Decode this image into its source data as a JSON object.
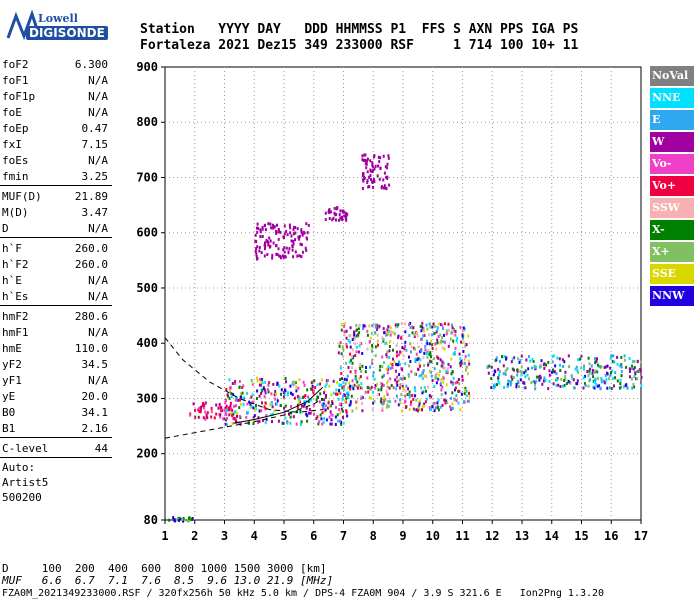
{
  "logo": {
    "line1": "Lowell",
    "line2": "DIGISONDE"
  },
  "header": {
    "line1": "Station   YYYY DAY   DDD HHMMSS P1  FFS S AXN PPS IGA PS",
    "line2": "Fortaleza 2021 Dez15 349 233000 RSF     1 714 100 10+ 11"
  },
  "params": {
    "group1": [
      {
        "k": "foF2",
        "v": "6.300"
      },
      {
        "k": "foF1",
        "v": "N/A"
      },
      {
        "k": "foF1p",
        "v": "N/A"
      },
      {
        "k": "foE",
        "v": "N/A"
      },
      {
        "k": "foEp",
        "v": "0.47"
      },
      {
        "k": "fxI",
        "v": "7.15"
      },
      {
        "k": "foEs",
        "v": "N/A"
      },
      {
        "k": "fmin",
        "v": "3.25"
      }
    ],
    "group2": [
      {
        "k": "MUF(D)",
        "v": "21.89"
      },
      {
        "k": "M(D)",
        "v": "3.47"
      },
      {
        "k": "D",
        "v": "N/A"
      }
    ],
    "group3": [
      {
        "k": "h`F",
        "v": "260.0"
      },
      {
        "k": "h`F2",
        "v": "260.0"
      },
      {
        "k": "h`E",
        "v": "N/A"
      },
      {
        "k": "h`Es",
        "v": "N/A"
      }
    ],
    "group4": [
      {
        "k": "hmF2",
        "v": "280.6"
      },
      {
        "k": "hmF1",
        "v": "N/A"
      },
      {
        "k": "hmE",
        "v": "110.0"
      },
      {
        "k": "yF2",
        "v": "34.5"
      },
      {
        "k": "yF1",
        "v": "N/A"
      },
      {
        "k": "yE",
        "v": "20.0"
      },
      {
        "k": "B0",
        "v": "34.1"
      },
      {
        "k": "B1",
        "v": "2.16"
      }
    ],
    "group5": [
      {
        "k": "C-level",
        "v": "44"
      }
    ],
    "misc": [
      "Auto:",
      "Artist5",
      "500200"
    ]
  },
  "legend": [
    {
      "label": "NoVal",
      "color": "#808080"
    },
    {
      "label": "NNE",
      "color": "#00e0ff"
    },
    {
      "label": "E",
      "color": "#30a8f0"
    },
    {
      "label": "W",
      "color": "#a000a0"
    },
    {
      "label": "Vo-",
      "color": "#f040c8"
    },
    {
      "label": "Vo+",
      "color": "#f00040"
    },
    {
      "label": "SSW",
      "color": "#f8b0b0"
    },
    {
      "label": "X-",
      "color": "#008000"
    },
    {
      "label": "X+",
      "color": "#80c060"
    },
    {
      "label": "SSE",
      "color": "#d8d800"
    },
    {
      "label": "NNW",
      "color": "#2000e0"
    }
  ],
  "footer": {
    "line1": "D     100  200  400  600  800 1000 1500 3000 [km]",
    "line2": "MUF   6.6  6.7  7.1  7.6  8.5  9.6 13.0 21.9 [MHz]",
    "line3": "FZA0M_2021349233000.RSF / 320fx256h 50 kHz 5.0 km / DPS-4 FZA0M 904 / 3.9 S 321.6 E   Ion2Png 1.3.20"
  },
  "chart_data": {
    "type": "scatter",
    "xlabel": "",
    "ylabel": "",
    "xlim": [
      1,
      17
    ],
    "ylim": [
      80,
      900
    ],
    "xticks": [
      1,
      2,
      3,
      4,
      5,
      6,
      7,
      8,
      9,
      10,
      11,
      12,
      13,
      14,
      15,
      16,
      17
    ],
    "yticks": [
      80,
      200,
      300,
      400,
      500,
      600,
      700,
      800,
      900
    ],
    "grid": true,
    "legend_position": "right",
    "clusters": [
      {
        "name": "E-trace",
        "f": [
          1.1,
          1.9
        ],
        "h": [
          80,
          88
        ],
        "colors": [
          "#008000",
          "#80c060",
          "#2000e0"
        ]
      },
      {
        "name": "F-trace-low",
        "f": [
          1.8,
          3.3
        ],
        "h": [
          265,
          295
        ],
        "colors": [
          "#a000a0",
          "#f040c8",
          "#f00040"
        ]
      },
      {
        "name": "F-trace-main",
        "f": [
          3.0,
          7.2
        ],
        "h": [
          255,
          340
        ],
        "colors": [
          "#a000a0",
          "#f040c8",
          "#f00040",
          "#00e0ff",
          "#2000e0",
          "#d8d800",
          "#008000"
        ]
      },
      {
        "name": "F-scatter",
        "f": [
          6.8,
          11.2
        ],
        "h": [
          280,
          440
        ],
        "colors": [
          "#a000a0",
          "#f040c8",
          "#f00040",
          "#f8b0b0",
          "#00e0ff",
          "#30a8f0",
          "#2000e0",
          "#d8d800",
          "#008000",
          "#80c060"
        ]
      },
      {
        "name": "far-scatter",
        "f": [
          11.8,
          17.0
        ],
        "h": [
          320,
          380
        ],
        "colors": [
          "#00e0ff",
          "#30a8f0",
          "#2000e0",
          "#008000",
          "#80c060",
          "#a000a0"
        ]
      },
      {
        "name": "second-hop-1",
        "f": [
          4.0,
          5.8
        ],
        "h": [
          555,
          620
        ],
        "colors": [
          "#a000a0"
        ]
      },
      {
        "name": "second-hop-2",
        "f": [
          6.3,
          7.1
        ],
        "h": [
          625,
          650
        ],
        "colors": [
          "#a000a0"
        ]
      },
      {
        "name": "second-hop-3",
        "f": [
          7.6,
          8.5
        ],
        "h": [
          680,
          745
        ],
        "colors": [
          "#a000a0"
        ]
      }
    ],
    "profile_lines": [
      {
        "style": "dashed",
        "f": [
          1.0,
          1.6,
          2.5,
          3.5,
          4.5,
          5.5,
          6.3
        ],
        "h": [
          410,
          370,
          330,
          300,
          280,
          275,
          280
        ]
      },
      {
        "style": "dashed",
        "f": [
          1.0,
          2.0,
          3.0,
          4.0,
          5.0,
          6.0,
          6.3
        ],
        "h": [
          228,
          238,
          248,
          258,
          270,
          290,
          300
        ]
      },
      {
        "style": "solid",
        "f": [
          3.3,
          4.0,
          5.0,
          5.8,
          6.3
        ],
        "h": [
          255,
          262,
          275,
          295,
          320
        ]
      }
    ]
  }
}
